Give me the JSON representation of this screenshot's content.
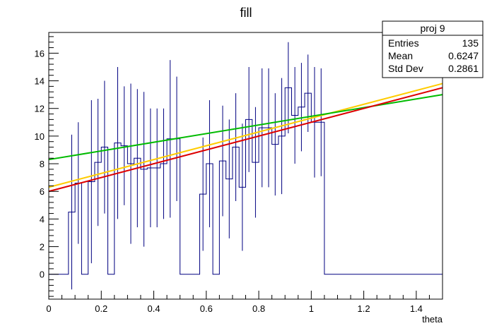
{
  "chart_data": {
    "type": "line",
    "title": "fill",
    "xlabel": "theta",
    "ylabel": "",
    "xlim": [
      0,
      1.5
    ],
    "ylim": [
      -1.8,
      17.5
    ],
    "x_ticks": [
      0,
      0.2,
      0.4,
      0.6,
      0.8,
      1,
      1.2,
      1.4
    ],
    "x_tick_labels": [
      "0",
      "0.2",
      "0.4",
      "0.6",
      "0.8",
      "1",
      "1.2",
      "1.4"
    ],
    "y_ticks": [
      0,
      2,
      4,
      6,
      8,
      10,
      12,
      14,
      16
    ],
    "y_tick_labels": [
      "0",
      "2",
      "4",
      "6",
      "8",
      "10",
      "12",
      "14",
      "16"
    ],
    "stats_box": {
      "title": "proj 9",
      "rows": [
        {
          "label": "Entries",
          "value": "135"
        },
        {
          "label": "Mean",
          "value": "0.6247"
        },
        {
          "label": "Std Dev",
          "value": "0.2861"
        }
      ]
    },
    "histogram": {
      "name": "proj 9",
      "color": "#000080",
      "bin_width": 0.025,
      "bins": [
        {
          "x": 0.0875,
          "y": 4.5,
          "err": 5.6
        },
        {
          "x": 0.1125,
          "y": 6.6,
          "err": 4.4
        },
        {
          "x": 0.1375,
          "y": 0.0,
          "err": 0
        },
        {
          "x": 0.1625,
          "y": 6.7,
          "err": 5.9
        },
        {
          "x": 0.1875,
          "y": 8.1,
          "err": 4.6
        },
        {
          "x": 0.2125,
          "y": 9.2,
          "err": 4.8
        },
        {
          "x": 0.2375,
          "y": 0.0,
          "err": 0
        },
        {
          "x": 0.2625,
          "y": 9.5,
          "err": 5.5
        },
        {
          "x": 0.2875,
          "y": 9.3,
          "err": 4.3
        },
        {
          "x": 0.3125,
          "y": 8.0,
          "err": 5.8
        },
        {
          "x": 0.3375,
          "y": 8.4,
          "err": 5.0
        },
        {
          "x": 0.3625,
          "y": 7.6,
          "err": 5.6
        },
        {
          "x": 0.3875,
          "y": 7.7,
          "err": 4.3
        },
        {
          "x": 0.4125,
          "y": 7.7,
          "err": 4.3
        },
        {
          "x": 0.4375,
          "y": 8.0,
          "err": 4.0
        },
        {
          "x": 0.4625,
          "y": 9.8,
          "err": 5.7
        },
        {
          "x": 0.4875,
          "y": 9.8,
          "err": 4.5
        },
        {
          "x": 0.5125,
          "y": 0.0,
          "err": 0
        },
        {
          "x": 0.5375,
          "y": 0.0,
          "err": 0
        },
        {
          "x": 0.5625,
          "y": 0.0,
          "err": 0
        },
        {
          "x": 0.5875,
          "y": 5.8,
          "err": 4.1
        },
        {
          "x": 0.6125,
          "y": 8.0,
          "err": 4.6
        },
        {
          "x": 0.6375,
          "y": 0.0,
          "err": 0
        },
        {
          "x": 0.6625,
          "y": 8.2,
          "err": 4.0
        },
        {
          "x": 0.6875,
          "y": 6.9,
          "err": 4.3
        },
        {
          "x": 0.7125,
          "y": 9.2,
          "err": 3.9
        },
        {
          "x": 0.7375,
          "y": 6.3,
          "err": 4.6
        },
        {
          "x": 0.7625,
          "y": 11.2,
          "err": 3.8
        },
        {
          "x": 0.7875,
          "y": 8.1,
          "err": 4.0
        },
        {
          "x": 0.8125,
          "y": 10.6,
          "err": 4.3
        },
        {
          "x": 0.8375,
          "y": 10.6,
          "err": 4.3
        },
        {
          "x": 0.8625,
          "y": 9.4,
          "err": 3.7
        },
        {
          "x": 0.8875,
          "y": 10.0,
          "err": 4.2
        },
        {
          "x": 0.9125,
          "y": 13.5,
          "err": 3.3
        },
        {
          "x": 0.9375,
          "y": 11.5,
          "err": 3.5
        },
        {
          "x": 0.9625,
          "y": 12.1,
          "err": 3.2
        },
        {
          "x": 0.9875,
          "y": 13.1,
          "err": 2.8
        },
        {
          "x": 1.0125,
          "y": 11.0,
          "err": 4.0
        },
        {
          "x": 1.0375,
          "y": 11.0,
          "err": 3.9
        }
      ],
      "zero_from": [
        0.0,
        0.075
      ],
      "zero_after": [
        1.05,
        1.5
      ]
    },
    "series": [
      {
        "color": "#ffcc00",
        "x": [
          0,
          1.5
        ],
        "y": [
          6.3,
          13.8
        ]
      },
      {
        "color": "#00bb00",
        "x": [
          0,
          1.5
        ],
        "y": [
          8.3,
          13.0
        ]
      },
      {
        "color": "#dd0000",
        "x": [
          0,
          1.5
        ],
        "y": [
          6.0,
          13.5
        ]
      }
    ],
    "grid": false,
    "legend": "top-right"
  }
}
